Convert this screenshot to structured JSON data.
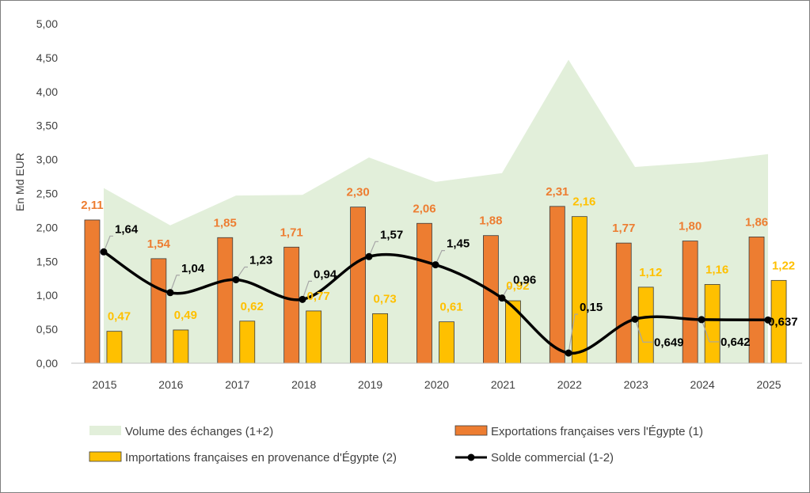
{
  "chart_data": {
    "type": "bar",
    "ylabel": "En Md EUR",
    "ylim": [
      0,
      5
    ],
    "yticks": [
      "0,00",
      "0,50",
      "1,00",
      "1,50",
      "2,00",
      "2,50",
      "3,00",
      "3,50",
      "4,00",
      "4,50",
      "5,00"
    ],
    "categories": [
      "2015",
      "2016",
      "2017",
      "2018",
      "2019",
      "2020",
      "2021",
      "2022",
      "2023",
      "2024",
      "2025"
    ],
    "grid": false,
    "legend_position": "bottom",
    "series": [
      {
        "name": "Volume des échanges (1+2)",
        "type": "area",
        "color": "#E2EFDA",
        "values": [
          2.58,
          2.03,
          2.47,
          2.48,
          3.03,
          2.67,
          2.8,
          4.47,
          2.89,
          2.96,
          3.08
        ]
      },
      {
        "name": "Exportations françaises vers l'Égypte (1)",
        "type": "bar",
        "color": "#ED7D31",
        "values": [
          2.11,
          1.54,
          1.85,
          1.71,
          2.3,
          2.06,
          1.88,
          2.31,
          1.77,
          1.8,
          1.86
        ],
        "labels": [
          "2,11",
          "1,54",
          "1,85",
          "1,71",
          "2,30",
          "2,06",
          "1,88",
          "2,31",
          "1,77",
          "1,80",
          "1,86"
        ]
      },
      {
        "name": "Importations françaises en provenance d'Égypte (2)",
        "type": "bar",
        "color": "#FFC000",
        "values": [
          0.47,
          0.49,
          0.62,
          0.77,
          0.73,
          0.61,
          0.92,
          2.16,
          1.12,
          1.16,
          1.22
        ],
        "labels": [
          "0,47",
          "0,49",
          "0,62",
          "0,77",
          "0,73",
          "0,61",
          "0,92",
          "2,16",
          "1,12",
          "1,16",
          "1,22"
        ]
      },
      {
        "name": "Solde commercial (1-2)",
        "type": "line",
        "color": "#000000",
        "values": [
          1.64,
          1.04,
          1.23,
          0.94,
          1.57,
          1.45,
          0.96,
          0.15,
          0.649,
          0.642,
          0.637
        ],
        "labels": [
          "1,64",
          "1,04",
          "1,23",
          "0,94",
          "1,57",
          "1,45",
          "0,96",
          "0,15",
          "0,649",
          "0,642",
          "0,637"
        ]
      }
    ]
  }
}
